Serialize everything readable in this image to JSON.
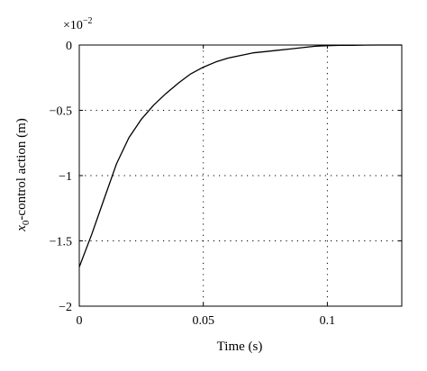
{
  "chart_data": {
    "type": "line",
    "xlabel": "Time (s)",
    "ylabel_italic": "x",
    "ylabel_subscript": "0",
    "ylabel_rest": "-control action (m)",
    "ylim": [
      -2,
      0
    ],
    "xlim": [
      0,
      0.13
    ],
    "y_multiplier_base": "×10",
    "y_multiplier_exp": "−2",
    "grid": true,
    "x_ticks": [
      {
        "value": 0,
        "label": "0"
      },
      {
        "value": 0.05,
        "label": "0.05"
      },
      {
        "value": 0.1,
        "label": "0.1"
      }
    ],
    "y_ticks": [
      {
        "value": 0,
        "label": "0"
      },
      {
        "value": -0.5,
        "label": "−0.5"
      },
      {
        "value": -1,
        "label": "−1"
      },
      {
        "value": -1.5,
        "label": "−1.5"
      },
      {
        "value": -2,
        "label": "−2"
      }
    ],
    "series": [
      {
        "color": "#000000",
        "x": [
          0,
          0.005,
          0.01,
          0.015,
          0.02,
          0.025,
          0.03,
          0.035,
          0.04,
          0.045,
          0.05,
          0.055,
          0.06,
          0.065,
          0.07,
          0.075,
          0.08,
          0.085,
          0.09,
          0.095,
          0.1,
          0.105,
          0.11,
          0.115,
          0.12,
          0.125,
          0.13
        ],
        "y": [
          -1.7,
          -1.45,
          -1.18,
          -0.91,
          -0.71,
          -0.57,
          -0.46,
          -0.37,
          -0.29,
          -0.22,
          -0.17,
          -0.13,
          -0.1,
          -0.08,
          -0.06,
          -0.05,
          -0.04,
          -0.03,
          -0.02,
          -0.01,
          -0.005,
          -0.003,
          -0.002,
          -0.001,
          0,
          0,
          0
        ]
      }
    ]
  }
}
